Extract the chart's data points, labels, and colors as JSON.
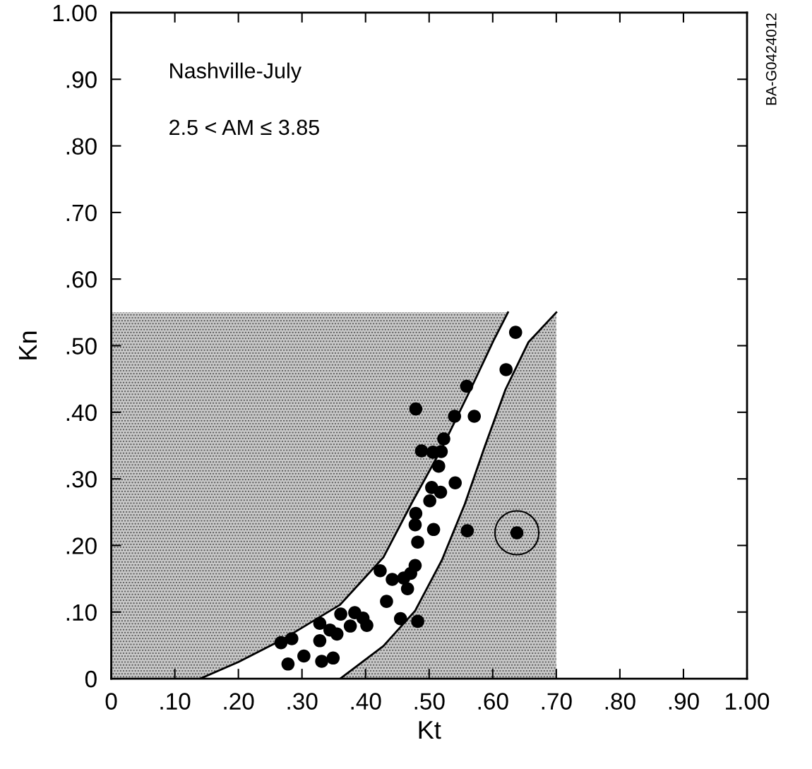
{
  "chart_data": {
    "type": "scatter",
    "xlabel": "Kt",
    "ylabel": "Kn",
    "annotations": [
      "Nashville-July",
      "2.5 < AM ≤ 3.85",
      "BA-G0424012"
    ],
    "xlim": [
      0,
      1.0
    ],
    "ylim": [
      0,
      1.0
    ],
    "xticks": [
      {
        "value": 0,
        "label": "0"
      },
      {
        "value": 0.1,
        "label": ".10"
      },
      {
        "value": 0.2,
        "label": ".20"
      },
      {
        "value": 0.3,
        "label": ".30"
      },
      {
        "value": 0.4,
        "label": ".40"
      },
      {
        "value": 0.5,
        "label": ".50"
      },
      {
        "value": 0.6,
        "label": ".60"
      },
      {
        "value": 0.7,
        "label": ".70"
      },
      {
        "value": 0.8,
        "label": ".80"
      },
      {
        "value": 0.9,
        "label": ".90"
      },
      {
        "value": 1.0,
        "label": "1.00"
      }
    ],
    "yticks": [
      {
        "value": 0,
        "label": "0"
      },
      {
        "value": 0.1,
        "label": ".10"
      },
      {
        "value": 0.2,
        "label": ".20"
      },
      {
        "value": 0.3,
        "label": ".30"
      },
      {
        "value": 0.4,
        "label": ".40"
      },
      {
        "value": 0.5,
        "label": ".50"
      },
      {
        "value": 0.6,
        "label": ".60"
      },
      {
        "value": 0.7,
        "label": ".70"
      },
      {
        "value": 0.8,
        "label": ".80"
      },
      {
        "value": 0.9,
        "label": ".90"
      },
      {
        "value": 1.0,
        "label": "1.00"
      }
    ],
    "grid": false,
    "legend": false,
    "marker": "circle",
    "series": [
      {
        "type": "line",
        "marker": "none",
        "color": "#000000",
        "x": [
          0.14,
          0.2,
          0.268,
          0.36,
          0.428,
          0.474,
          0.52,
          0.565,
          0.602,
          0.624
        ],
        "values": [
          0,
          0.025,
          0.058,
          0.111,
          0.182,
          0.266,
          0.346,
          0.434,
          0.509,
          0.55
        ]
      },
      {
        "type": "line",
        "marker": "none",
        "color": "#000000",
        "x": [
          0.36,
          0.428,
          0.478,
          0.52,
          0.556,
          0.588,
          0.62,
          0.656,
          0.7
        ],
        "values": [
          0,
          0.049,
          0.102,
          0.178,
          0.262,
          0.35,
          0.434,
          0.505,
          0.55
        ]
      },
      {
        "color": "#000000",
        "x": [
          0.636,
          0.621,
          0.559,
          0.479,
          0.54,
          0.571,
          0.523,
          0.488,
          0.506,
          0.519,
          0.515,
          0.541,
          0.504,
          0.518,
          0.501,
          0.479,
          0.478,
          0.507,
          0.56,
          0.638,
          0.482,
          0.478,
          0.471,
          0.46,
          0.466,
          0.423,
          0.442,
          0.433,
          0.455,
          0.482,
          0.361,
          0.383,
          0.396,
          0.402,
          0.376,
          0.328,
          0.344,
          0.355,
          0.328,
          0.284,
          0.267,
          0.303,
          0.278,
          0.331,
          0.349
        ],
        "values": [
          0.52,
          0.464,
          0.439,
          0.405,
          0.394,
          0.394,
          0.36,
          0.342,
          0.34,
          0.341,
          0.319,
          0.294,
          0.287,
          0.28,
          0.267,
          0.248,
          0.231,
          0.224,
          0.222,
          0.219,
          0.205,
          0.17,
          0.158,
          0.151,
          0.135,
          0.162,
          0.149,
          0.116,
          0.09,
          0.086,
          0.097,
          0.099,
          0.091,
          0.08,
          0.079,
          0.083,
          0.073,
          0.067,
          0.057,
          0.06,
          0.054,
          0.034,
          0.022,
          0.026,
          0.031
        ]
      },
      {
        "type": "bubble",
        "color": "#000000",
        "x": [
          0.638
        ],
        "values": [
          0.219
        ],
        "sizes": [
          1
        ]
      }
    ]
  }
}
